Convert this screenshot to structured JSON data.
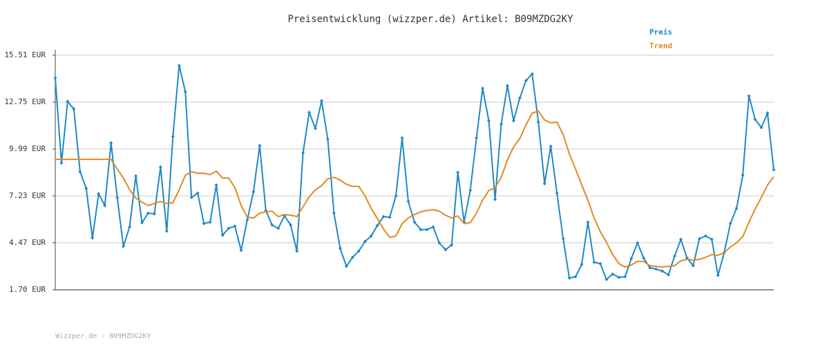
{
  "chart_data": {
    "type": "line",
    "title": "Preisentwicklung (wizzper.de) Artikel: B09MZDG2KY",
    "footer": "Wizzper.de - B09MZDG2KY",
    "grid": true,
    "legend_position": "top-right",
    "ylim": [
      1.7,
      15.51
    ],
    "yticks": [
      {
        "value": 1.7,
        "label": "1.70 EUR"
      },
      {
        "value": 4.47,
        "label": "4.47 EUR"
      },
      {
        "value": 7.23,
        "label": "7.23 EUR"
      },
      {
        "value": 9.99,
        "label": "9.99 EUR"
      },
      {
        "value": 12.75,
        "label": "12.75 EUR"
      },
      {
        "value": 15.51,
        "label": "15.51 EUR"
      }
    ],
    "categories": [
      null,
      null,
      null,
      null,
      null,
      null,
      null,
      null,
      null,
      null,
      null,
      null,
      null,
      null,
      null,
      null,
      null,
      null,
      null,
      null,
      null,
      null,
      null,
      null,
      null,
      null,
      null,
      null,
      null,
      null,
      null,
      null,
      null,
      null,
      null,
      null,
      null,
      null,
      null,
      null,
      null,
      null,
      null,
      null,
      null,
      null,
      null,
      null,
      null,
      null,
      null,
      null,
      null,
      null,
      null,
      null,
      null,
      null,
      null,
      null,
      null,
      null,
      null,
      null,
      null,
      null,
      null,
      null,
      null,
      null,
      null,
      null,
      null,
      null,
      null,
      null,
      null,
      null,
      null,
      null,
      null,
      null,
      null,
      null,
      null,
      null,
      null,
      null,
      null,
      null,
      null,
      null,
      null,
      null,
      null,
      null,
      null,
      null,
      null,
      null,
      null,
      null,
      null,
      null,
      null,
      null,
      null,
      null,
      null,
      null,
      null,
      null,
      null,
      null,
      null,
      null,
      null
    ],
    "series": [
      {
        "name": "Preis",
        "color": "#1f88c6",
        "markers": true,
        "values": [
          14.17,
          9.17,
          12.79,
          12.34,
          8.65,
          7.67,
          4.75,
          7.35,
          6.66,
          10.35,
          7.14,
          4.26,
          5.4,
          8.4,
          5.65,
          6.21,
          6.17,
          8.93,
          5.15,
          10.72,
          14.9,
          13.36,
          7.14,
          7.39,
          5.6,
          5.68,
          7.87,
          4.91,
          5.32,
          5.44,
          4.02,
          5.81,
          7.47,
          10.19,
          6.37,
          5.52,
          5.32,
          6.05,
          5.52,
          3.98,
          9.75,
          12.14,
          11.2,
          12.83,
          10.56,
          6.21,
          4.14,
          3.08,
          3.61,
          3.98,
          4.54,
          4.87,
          5.48,
          6.01,
          5.97,
          7.23,
          10.64,
          6.9,
          5.68,
          5.24,
          5.24,
          5.4,
          4.46,
          4.06,
          4.34,
          8.61,
          5.68,
          7.55,
          10.64,
          13.56,
          11.65,
          7.02,
          11.45,
          13.72,
          11.65,
          12.99,
          14.01,
          14.41,
          11.57,
          7.95,
          10.15,
          7.39,
          4.71,
          2.39,
          2.47,
          3.2,
          5.68,
          3.32,
          3.24,
          2.31,
          2.63,
          2.43,
          2.47,
          3.53,
          4.46,
          3.57,
          3.0,
          2.92,
          2.8,
          2.59,
          3.69,
          4.67,
          3.57,
          3.12,
          4.71,
          4.87,
          4.67,
          2.55,
          3.89,
          5.6,
          6.5,
          8.44,
          13.11,
          11.73,
          11.25,
          12.1,
          8.77
        ]
      },
      {
        "name": "Trend",
        "color": "#e08a22",
        "markers": false,
        "values": [
          9.38,
          9.38,
          9.38,
          9.38,
          9.38,
          9.38,
          9.38,
          9.38,
          9.38,
          9.38,
          8.81,
          8.28,
          7.59,
          7.1,
          6.86,
          6.66,
          6.78,
          6.9,
          6.78,
          6.82,
          7.59,
          8.44,
          8.65,
          8.56,
          8.56,
          8.48,
          8.69,
          8.28,
          8.28,
          7.71,
          6.66,
          5.97,
          5.93,
          6.21,
          6.29,
          6.33,
          6.01,
          6.13,
          6.09,
          6.01,
          6.58,
          7.18,
          7.59,
          7.83,
          8.24,
          8.32,
          8.16,
          7.91,
          7.79,
          7.79,
          7.23,
          6.5,
          5.89,
          5.28,
          4.79,
          4.87,
          5.6,
          5.93,
          6.13,
          6.29,
          6.37,
          6.41,
          6.33,
          6.09,
          5.93,
          6.05,
          5.6,
          5.65,
          6.21,
          6.98,
          7.55,
          7.71,
          8.32,
          9.34,
          10.11,
          10.6,
          11.41,
          12.1,
          12.22,
          11.69,
          11.53,
          11.57,
          10.84,
          9.71,
          8.81,
          7.87,
          6.98,
          5.93,
          5.12,
          4.5,
          3.77,
          3.24,
          3.04,
          3.16,
          3.37,
          3.37,
          3.12,
          3.08,
          3.04,
          3.08,
          3.12,
          3.41,
          3.49,
          3.45,
          3.49,
          3.61,
          3.77,
          3.73,
          3.89,
          4.22,
          4.46,
          4.83,
          5.68,
          6.45,
          7.14,
          7.87,
          8.36
        ]
      }
    ]
  }
}
